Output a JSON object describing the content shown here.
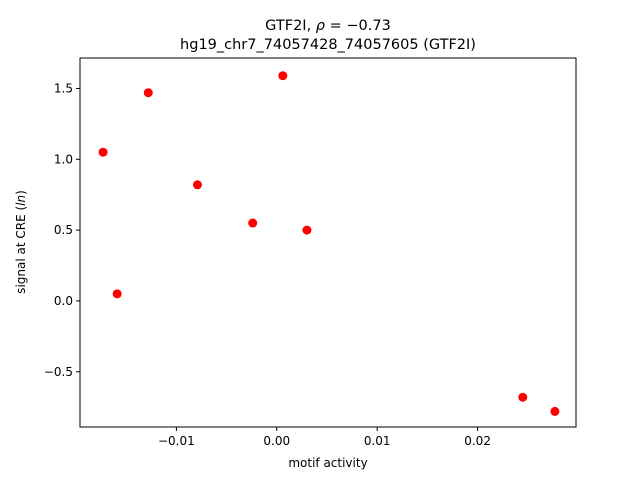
{
  "chart_data": {
    "type": "scatter",
    "title_line1_prefix": "GTF2I, ",
    "title_line1_rho": "ρ",
    "title_line1_suffix": " = −0.73",
    "title_line2": "hg19_chr7_74057428_74057605 (GTF2I)",
    "xlabel": "motif activity",
    "ylabel_prefix": "signal at CRE (",
    "ylabel_italic": "ln",
    "ylabel_suffix": ")",
    "xlim": [
      -0.0196,
      0.0298
    ],
    "ylim": [
      -0.89,
      1.715
    ],
    "xticks": [
      -0.01,
      0.0,
      0.01,
      0.02
    ],
    "xtick_labels": [
      "−0.01",
      "0.00",
      "0.01",
      "0.02"
    ],
    "yticks": [
      -0.5,
      0.0,
      0.5,
      1.0,
      1.5
    ],
    "ytick_labels": [
      "−0.5",
      "0.0",
      "0.5",
      "1.0",
      "1.5"
    ],
    "grid": false,
    "marker_color": "#ff0000",
    "points": [
      {
        "x": -0.0173,
        "y": 1.05
      },
      {
        "x": -0.0159,
        "y": 0.05
      },
      {
        "x": -0.0128,
        "y": 1.47
      },
      {
        "x": -0.0079,
        "y": 0.82
      },
      {
        "x": -0.0024,
        "y": 0.55
      },
      {
        "x": 0.0006,
        "y": 1.59
      },
      {
        "x": 0.003,
        "y": 0.5
      },
      {
        "x": 0.0245,
        "y": -0.68
      },
      {
        "x": 0.0277,
        "y": -0.78
      }
    ]
  }
}
